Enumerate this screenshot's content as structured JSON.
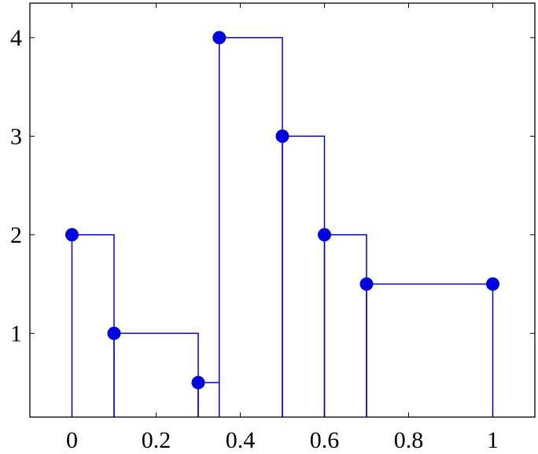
{
  "chart_data": {
    "type": "ybar-interval",
    "x": [
      0,
      0.1,
      0.3,
      0.35,
      0.5,
      0.6,
      0.7,
      1
    ],
    "values": [
      2,
      1,
      0.5,
      4,
      3,
      2,
      1.5,
      1.5
    ],
    "color": "#0000e0",
    "xlim": [
      -0.1,
      1.1
    ],
    "ylim": [
      0.15,
      4.35
    ],
    "xticks": [
      0,
      0.2,
      0.4,
      0.6,
      0.8,
      1
    ],
    "yticks": [
      1,
      2,
      3,
      4
    ],
    "grid": false
  }
}
